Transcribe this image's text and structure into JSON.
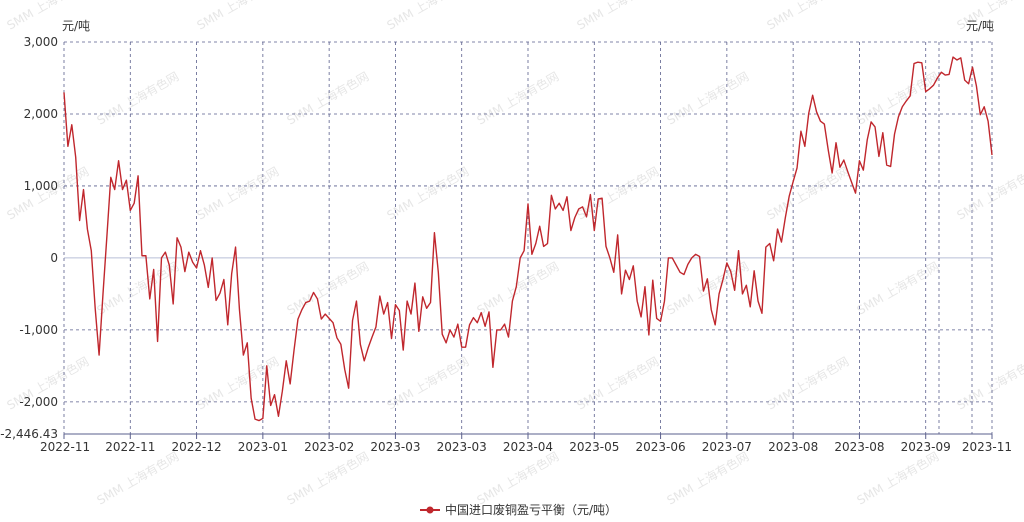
{
  "chart_data": {
    "type": "line",
    "y_unit_left": "元/吨",
    "y_unit_right": "元/吨",
    "ylim": [
      -2446.43,
      3000
    ],
    "y_ticks": [
      3000,
      2000,
      1000,
      0,
      -1000,
      -2000,
      -2446.43
    ],
    "y_tick_labels": [
      "3,000",
      "2,000",
      "1,000",
      "0",
      "-1,000",
      "-2,000",
      "-2,446.43"
    ],
    "x_tick_labels": [
      "2022-11",
      "2022-11",
      "2022-12",
      "2023-01",
      "2023-02",
      "2023-03",
      "2023-03",
      "2023-04",
      "2023-05",
      "2023-06",
      "2023-07",
      "2023-08",
      "2023-08",
      "2023-09",
      "2023-11"
    ],
    "grid": true,
    "legend_position": "bottom",
    "watermark": "SMM 上海有色网",
    "series": [
      {
        "name": "中国进口废铜盈亏平衡（元/吨）",
        "color": "#c0272d",
        "values": [
          2300,
          1550,
          1850,
          1400,
          520,
          950,
          400,
          100,
          -700,
          -1350,
          -500,
          300,
          1120,
          950,
          1350,
          950,
          1080,
          660,
          760,
          1140,
          30,
          30,
          -570,
          -160,
          -1160,
          0,
          80,
          -100,
          -640,
          280,
          150,
          -190,
          80,
          -60,
          -140,
          100,
          -100,
          -410,
          0,
          -590,
          -490,
          -300,
          -930,
          -220,
          150,
          -720,
          -1350,
          -1180,
          -1950,
          -2240,
          -2260,
          -2230,
          -1500,
          -2050,
          -1900,
          -2200,
          -1850,
          -1430,
          -1750,
          -1280,
          -850,
          -720,
          -620,
          -600,
          -480,
          -570,
          -850,
          -780,
          -840,
          -900,
          -1110,
          -1200,
          -1550,
          -1810,
          -870,
          -600,
          -1200,
          -1430,
          -1250,
          -1100,
          -960,
          -530,
          -780,
          -620,
          -1120,
          -650,
          -730,
          -1280,
          -600,
          -780,
          -350,
          -1020,
          -540,
          -700,
          -620,
          350,
          -200,
          -1060,
          -1180,
          -1000,
          -1100,
          -920,
          -1240,
          -1240,
          -930,
          -830,
          -900,
          -760,
          -950,
          -750,
          -1520,
          -1000,
          -1000,
          -920,
          -1100,
          -600,
          -400,
          0,
          100,
          750,
          50,
          200,
          440,
          160,
          200,
          870,
          680,
          760,
          660,
          850,
          380,
          560,
          680,
          710,
          570,
          880,
          380,
          820,
          830,
          160,
          0,
          -200,
          320,
          -500,
          -170,
          -300,
          -110,
          -600,
          -820,
          -400,
          -1070,
          -310,
          -840,
          -880,
          -600,
          0,
          0,
          -100,
          -200,
          -230,
          -90,
          0,
          50,
          20,
          -460,
          -290,
          -720,
          -930,
          -500,
          -300,
          -70,
          -190,
          -450,
          100,
          -500,
          -380,
          -680,
          -180,
          -600,
          -770,
          150,
          200,
          -40,
          400,
          220,
          560,
          860,
          1060,
          1250,
          1760,
          1550,
          2010,
          2260,
          2030,
          1900,
          1860,
          1500,
          1180,
          1600,
          1260,
          1360,
          1200,
          1050,
          900,
          1350,
          1220,
          1640,
          1890,
          1820,
          1410,
          1740,
          1290,
          1270,
          1720,
          1960,
          2100,
          2180,
          2250,
          2700,
          2720,
          2710,
          2310,
          2350,
          2400,
          2500,
          2580,
          2540,
          2550,
          2790,
          2750,
          2780,
          2470,
          2420,
          2650,
          2390,
          1990,
          2100,
          1900,
          1430
        ]
      }
    ]
  }
}
